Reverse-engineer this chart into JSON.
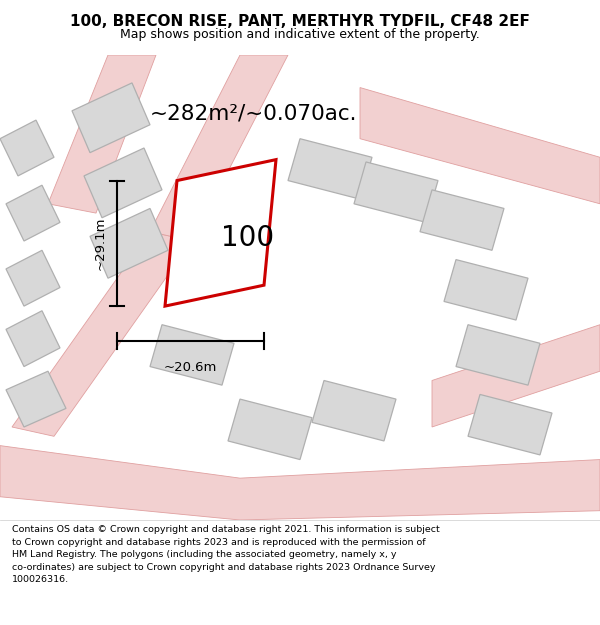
{
  "title_line1": "100, BRECON RISE, PANT, MERTHYR TYDFIL, CF48 2EF",
  "title_line2": "Map shows position and indicative extent of the property.",
  "area_text": "~282m²/~0.070ac.",
  "label_100": "100",
  "dim_width": "~20.6m",
  "dim_height": "~29.1m",
  "footer_text": "Contains OS data © Crown copyright and database right 2021. This information is subject\nto Crown copyright and database rights 2023 and is reproduced with the permission of\nHM Land Registry. The polygons (including the associated geometry, namely x, y\nco-ordinates) are subject to Crown copyright and database rights 2023 Ordnance Survey\n100026316.",
  "bg_color": "#f7f2f2",
  "map_bg": "#ffffff",
  "plot_outline_color": "#cc0000",
  "building_fill": "#d8d8d8",
  "building_outline": "#b0b0b0",
  "road_color": "#f2d0d0",
  "road_outline": "#e0a0a0",
  "footer_bg": "#ffffff",
  "figsize": [
    6.0,
    6.25
  ],
  "dpi": 100
}
